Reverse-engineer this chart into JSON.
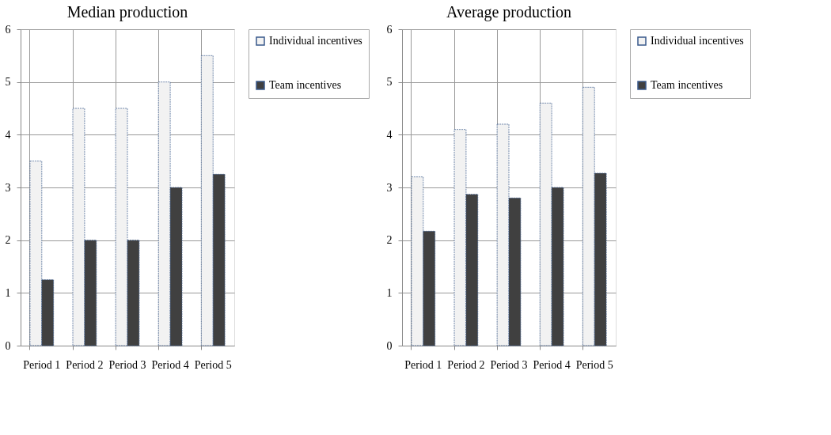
{
  "chart_data": [
    {
      "type": "bar",
      "title": "Median production",
      "categories": [
        "Period 1",
        "Period 2",
        "Period 3",
        "Period 4",
        "Period 5"
      ],
      "series": [
        {
          "name": "Individual incentives",
          "color": "#f2f2f2",
          "values": [
            3.5,
            4.5,
            4.5,
            5,
            5.5
          ]
        },
        {
          "name": "Team incentives",
          "color": "#404040",
          "values": [
            1.25,
            2,
            2,
            3,
            3.25
          ]
        }
      ],
      "ylim": [
        0,
        6
      ],
      "yticks": [
        0,
        1,
        2,
        3,
        4,
        5,
        6
      ],
      "grid": true,
      "legend": "right"
    },
    {
      "type": "bar",
      "title": "Average production",
      "categories": [
        "Period 1",
        "Period 2",
        "Period 3",
        "Period 4",
        "Period 5"
      ],
      "series": [
        {
          "name": "Individual incentives",
          "color": "#f2f2f2",
          "values": [
            3.2,
            4.1,
            4.2,
            4.6,
            4.9
          ]
        },
        {
          "name": "Team incentives",
          "color": "#404040",
          "values": [
            2.17,
            2.87,
            2.8,
            3,
            3.27
          ]
        }
      ],
      "ylim": [
        0,
        6
      ],
      "yticks": [
        0,
        1,
        2,
        3,
        4,
        5,
        6
      ],
      "grid": true,
      "legend": "right"
    }
  ]
}
